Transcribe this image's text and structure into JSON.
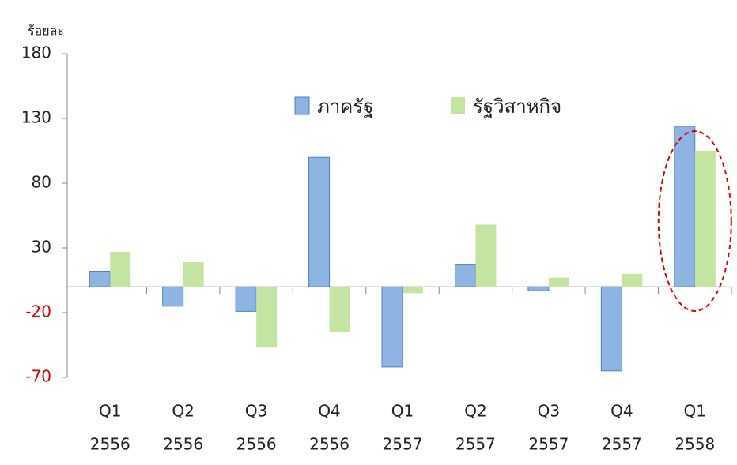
{
  "chart_data": {
    "type": "bar",
    "y_label": "ร้อยละ",
    "categories": [
      [
        "Q1",
        "2556"
      ],
      [
        "Q2",
        "2556"
      ],
      [
        "Q3",
        "2556"
      ],
      [
        "Q4",
        "2556"
      ],
      [
        "Q1",
        "2557"
      ],
      [
        "Q2",
        "2557"
      ],
      [
        "Q3",
        "2557"
      ],
      [
        "Q4",
        "2557"
      ],
      [
        "Q1",
        "2558"
      ]
    ],
    "series": [
      {
        "name": "ภาครัฐ",
        "color": "#8db4e2",
        "values": [
          12,
          -15,
          -19,
          100,
          -62,
          17,
          -3,
          -65,
          124
        ]
      },
      {
        "name": "รัฐวิสาหกิจ",
        "color": "#c4e5a2",
        "values": [
          27,
          19,
          -47,
          -35,
          -5,
          48,
          7,
          10,
          105
        ]
      }
    ],
    "ylim": [
      -70,
      180
    ],
    "yticks": [
      -70,
      -20,
      30,
      80,
      130,
      180
    ],
    "legend": "top"
  }
}
